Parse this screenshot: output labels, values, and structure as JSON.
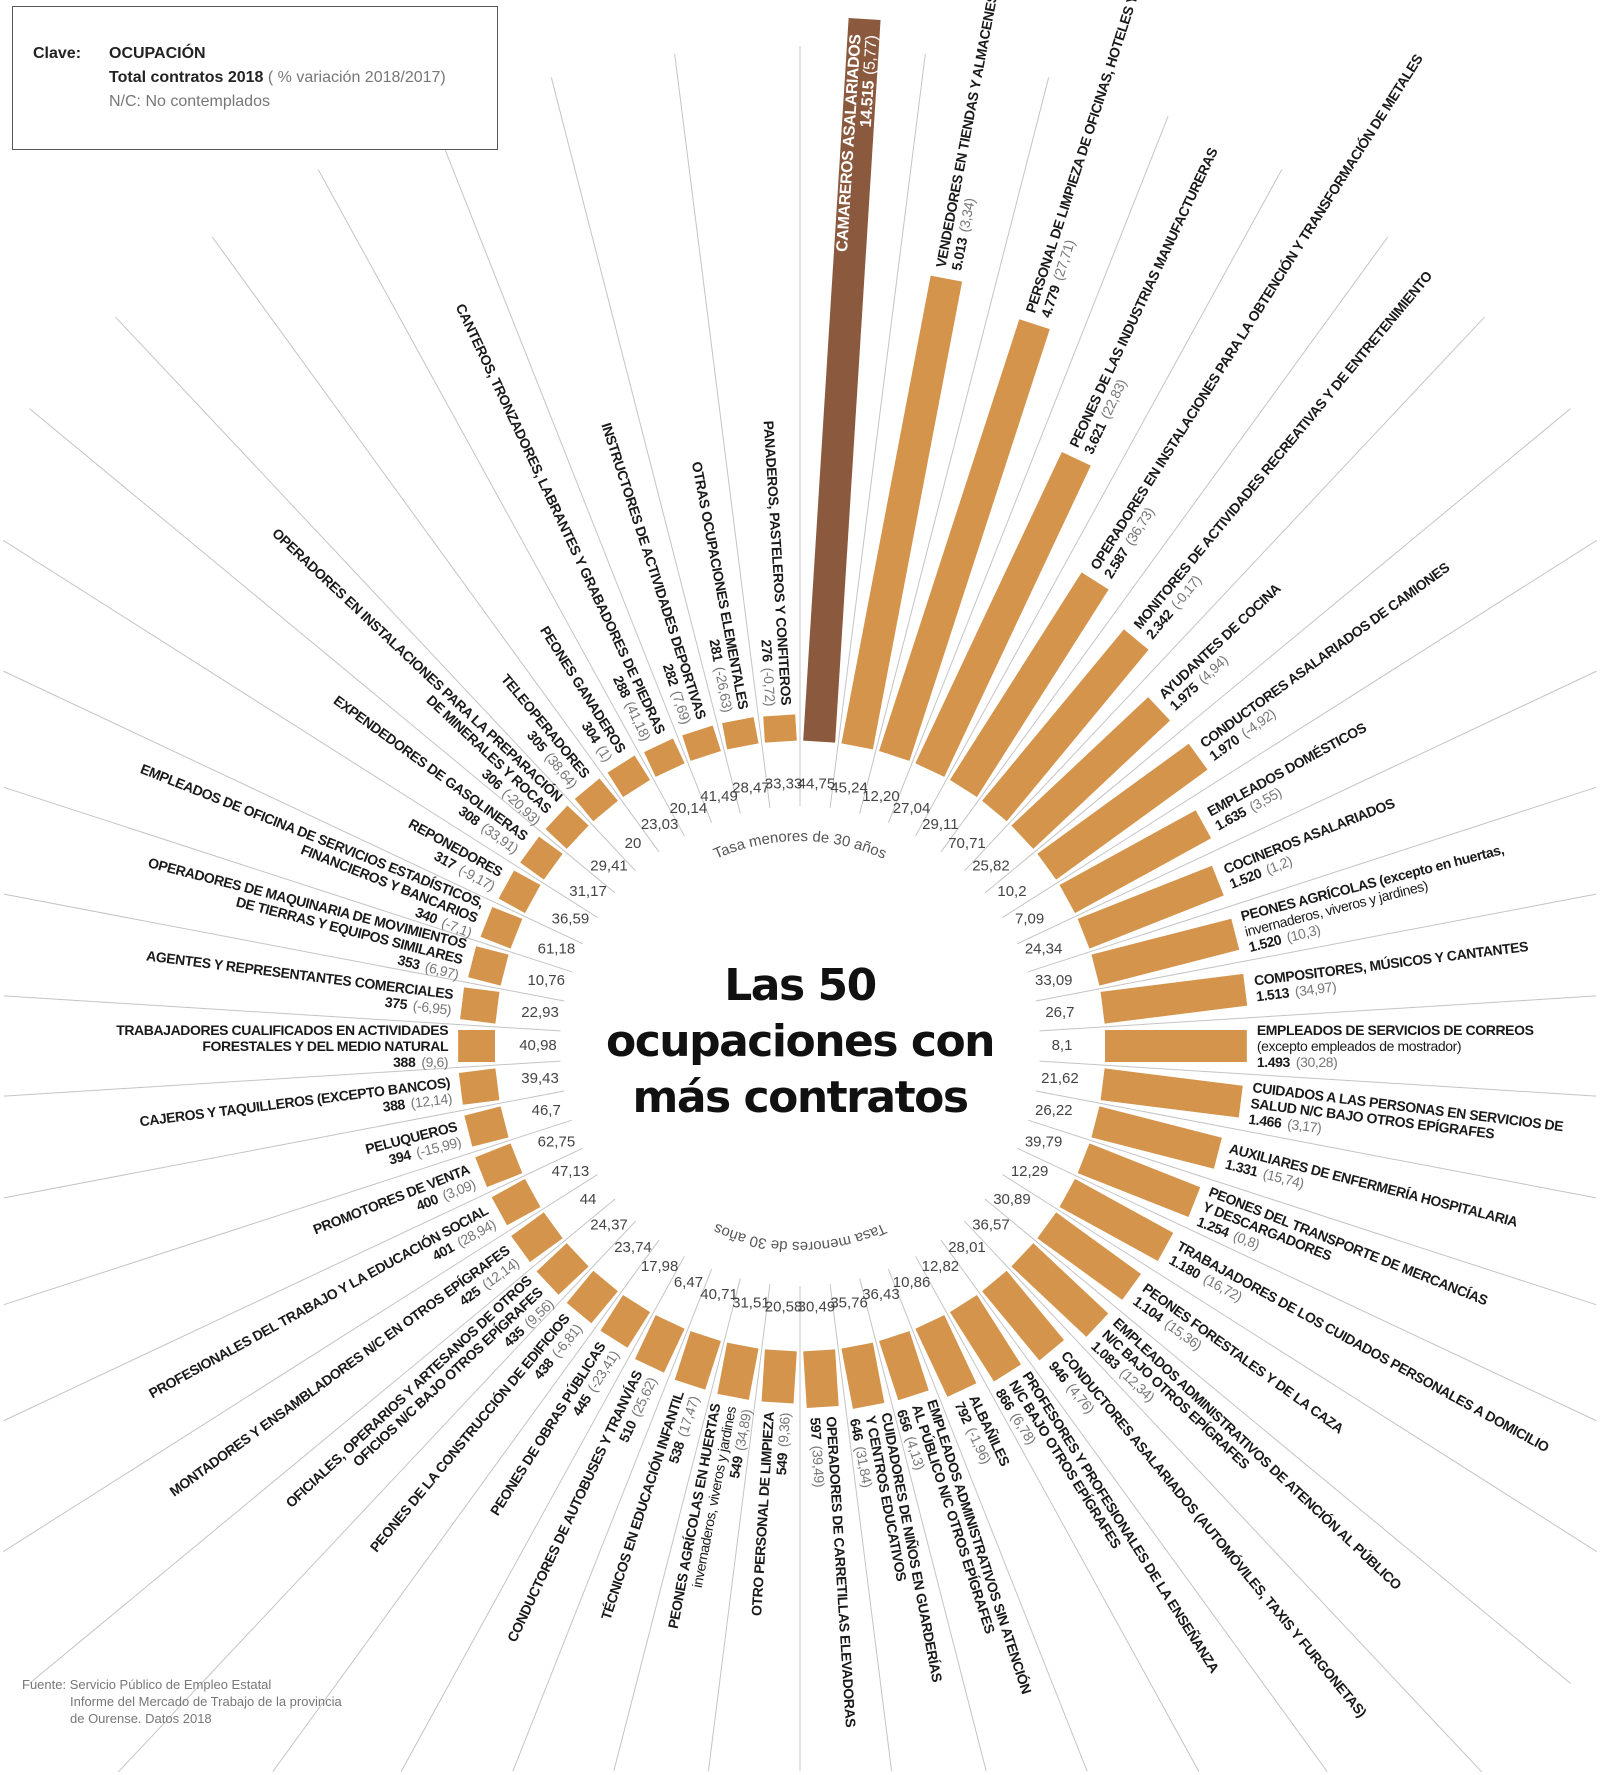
{
  "legend": {
    "key_label": "Clave:",
    "line1": "OCUPACIÓN",
    "line2_bold": "Total contratos 2018",
    "line2_rest": " ( % variación 2018/2017)",
    "line3": "N/C: No contemplados"
  },
  "title": {
    "line1": "Las 50",
    "line2": "ocupaciones con",
    "line3": "más contratos"
  },
  "tasa_label": "Tasa menores de 30 años",
  "source": {
    "line1": "Fuente: Servicio Público de Empleo Estatal",
    "line2": "Informe del Mercado de Trabajo de la provincia",
    "line3": "de Ourense. Datos 2018"
  },
  "colors": {
    "highlight_bar": "#8B5A3E",
    "bar": "#D4944C",
    "separator": "#C4C4C4"
  },
  "chart_data": {
    "type": "bar",
    "layout": "radial",
    "title": "Las 50 ocupaciones con más contratos",
    "value_label": "Total contratos 2018",
    "secondary_label": "% variación 2018/2017",
    "inner_label": "Tasa menores de 30 años",
    "items": [
      {
        "lines": [
          "CAMAREROS ASALARIADOS"
        ],
        "contratos": "14.515",
        "value": 14515,
        "variacion": "(5,77)",
        "tasa": "44,75"
      },
      {
        "lines": [
          "VENDEDORES EN TIENDAS Y ALMACENES"
        ],
        "contratos": "5.013",
        "value": 5013,
        "variacion": "(3,34)",
        "tasa": "45,24"
      },
      {
        "lines": [
          "PERSONAL DE LIMPIEZA DE OFICINAS, HOTELES Y OTROS"
        ],
        "contratos": "4.779",
        "value": 4779,
        "variacion": "(27,71)",
        "tasa": "12,20"
      },
      {
        "lines": [
          "PEONES DE LAS INDUSTRIAS MANUFACTURERAS"
        ],
        "contratos": "3.621",
        "value": 3621,
        "variacion": "(22,83)",
        "tasa": "27,04"
      },
      {
        "lines": [
          "OPERADORES EN INSTALACIONES PARA LA OBTENCIÓN Y TRANSFORMACIÓN DE METALES"
        ],
        "contratos": "2.587",
        "value": 2587,
        "variacion": "(36,73)",
        "tasa": "29,11"
      },
      {
        "lines": [
          "MONITORES DE ACTIVIDADES RECREATIVAS Y DE ENTRETENIMIENTO"
        ],
        "contratos": "2.342",
        "value": 2342,
        "variacion": "(-0,17)",
        "tasa": "70,71"
      },
      {
        "lines": [
          "AYUDANTES DE COCINA"
        ],
        "contratos": "1.975",
        "value": 1975,
        "variacion": "(4,94)",
        "tasa": "25,82"
      },
      {
        "lines": [
          "CONDUCTORES ASALARIADOS DE CAMIONES"
        ],
        "contratos": "1.970",
        "value": 1970,
        "variacion": "(-4,92)",
        "tasa": "10,2"
      },
      {
        "lines": [
          "EMPLEADOS DOMÉSTICOS"
        ],
        "contratos": "1.635",
        "value": 1635,
        "variacion": "(3,55)",
        "tasa": "7,09"
      },
      {
        "lines": [
          "COCINEROS ASALARIADOS"
        ],
        "contratos": "1.520",
        "value": 1520,
        "variacion": "(1,2)",
        "tasa": "24,34"
      },
      {
        "lines": [
          "PEONES AGRÍCOLAS (excepto en huertas,",
          "invernaderos, viveros y jardines)"
        ],
        "contratos": "1.520",
        "value": 1520,
        "variacion": "(10,3)",
        "tasa": "33,09"
      },
      {
        "lines": [
          "COMPOSITORES, MÚSICOS Y CANTANTES"
        ],
        "contratos": "1.513",
        "value": 1513,
        "variacion": "(34,97)",
        "tasa": "26,7"
      },
      {
        "lines": [
          "EMPLEADOS DE SERVICIOS DE CORREOS",
          "(excepto empleados de mostrador)"
        ],
        "contratos": "1.493",
        "value": 1493,
        "variacion": "(30,28)",
        "tasa": "8,1"
      },
      {
        "lines": [
          "CUIDADOS A LAS PERSONAS EN SERVICIOS DE",
          "SALUD N/C BAJO OTROS EPÍGRAFES"
        ],
        "contratos": "1.466",
        "value": 1466,
        "variacion": "(3,17)",
        "tasa": "21,62"
      },
      {
        "lines": [
          "AUXILIARES DE ENFERMERÍA HOSPITALARIA"
        ],
        "contratos": "1.331",
        "value": 1331,
        "variacion": "(15,74)",
        "tasa": "26,22"
      },
      {
        "lines": [
          "PEONES DEL TRANSPORTE DE MERCANCÍAS",
          "Y DESCARGADORES"
        ],
        "contratos": "1.254",
        "value": 1254,
        "variacion": "(0,8)",
        "tasa": "39,79"
      },
      {
        "lines": [
          "TRABAJADORES DE LOS CUIDADOS PERSONALES A DOMICILIO"
        ],
        "contratos": "1.180",
        "value": 1180,
        "variacion": "(16,72)",
        "tasa": "12,29"
      },
      {
        "lines": [
          "PEONES FORESTALES Y DE LA CAZA"
        ],
        "contratos": "1.104",
        "value": 1104,
        "variacion": "(15,36)",
        "tasa": "30,89"
      },
      {
        "lines": [
          "EMPLEADOS ADMINISTRATIVOS DE ATENCIÓN AL PÚBLICO",
          "N/C BAJO OTROS EPÍGRAFES"
        ],
        "contratos": "1.083",
        "value": 1083,
        "variacion": "(12,34)",
        "tasa": "36,57"
      },
      {
        "lines": [
          "CONDUCTORES ASALARIADOS (AUTOMÓVILES, TAXIS Y FURGONETAS)"
        ],
        "contratos": "946",
        "value": 946,
        "variacion": "(4,76)",
        "tasa": "28,01"
      },
      {
        "lines": [
          "PROFESORES Y PROFESIONALES DE LA ENSEÑANZA",
          "N/C BAJO OTROS EPÍGRAFES"
        ],
        "contratos": "866",
        "value": 866,
        "variacion": "(6,78)",
        "tasa": "12,82"
      },
      {
        "lines": [
          "ALBAÑILES"
        ],
        "contratos": "792",
        "value": 792,
        "variacion": "(-1,96)",
        "tasa": "10,86"
      },
      {
        "lines": [
          "EMPLEADOS ADMINISTRATIVOS SIN ATENCIÓN",
          "AL PÚBLICO N/C OTROS EPÍGRAFES"
        ],
        "contratos": "656",
        "value": 656,
        "variacion": "(4,13)",
        "tasa": "36,43"
      },
      {
        "lines": [
          "CUIDADORES DE NIÑOS EN GUARDERÍAS",
          "Y CENTROS EDUCATIVOS"
        ],
        "contratos": "646",
        "value": 646,
        "variacion": "(31,84)",
        "tasa": "35,76"
      },
      {
        "lines": [
          "OPERADORES DE CARRETILLAS ELEVADORAS"
        ],
        "contratos": "597",
        "value": 597,
        "variacion": "(39,49)",
        "tasa": "30,49"
      },
      {
        "lines": [
          "OTRO PERSONAL DE LIMPIEZA"
        ],
        "contratos": "549",
        "value": 549,
        "variacion": "(9,36)",
        "tasa": "20,58"
      },
      {
        "lines": [
          "PEONES AGRÍCOLAS EN HUERTAS",
          "invernaderos, viveros y jardines"
        ],
        "contratos": "549",
        "value": 549,
        "variacion": "(34,89)",
        "tasa": "31,51"
      },
      {
        "lines": [
          "TÉCNICOS EN EDUCACIÓN INFANTIL"
        ],
        "contratos": "538",
        "value": 538,
        "variacion": "(17,47)",
        "tasa": "40,71"
      },
      {
        "lines": [
          "CONDUCTORES DE AUTOBUSES Y TRANVÍAS"
        ],
        "contratos": "510",
        "value": 510,
        "variacion": "(25,62)",
        "tasa": "6,47"
      },
      {
        "lines": [
          "PEONES DE OBRAS PÚBLICAS"
        ],
        "contratos": "445",
        "value": 445,
        "variacion": "(-23,41)",
        "tasa": "17,98"
      },
      {
        "lines": [
          "PEONES DE LA CONSTRUCCIÓN DE EDIFICIOS"
        ],
        "contratos": "438",
        "value": 438,
        "variacion": "(-6,81)",
        "tasa": "23,74"
      },
      {
        "lines": [
          "OFICIALES, OPERARIOS Y ARTESANOS DE OTROS",
          "OFICIOS N/C BAJO OTROS EPÍGRAFES"
        ],
        "contratos": "435",
        "value": 435,
        "variacion": "(9,56)",
        "tasa": "24,37"
      },
      {
        "lines": [
          "MONTADORES Y ENSAMBLADORES N/C EN OTROS EPÍGRAFES"
        ],
        "contratos": "425",
        "value": 425,
        "variacion": "(12,14)",
        "tasa": "44"
      },
      {
        "lines": [
          "PROFESIONALES DEL TRABAJO Y LA EDUCACIÓN SOCIAL"
        ],
        "contratos": "401",
        "value": 401,
        "variacion": "(28,94)",
        "tasa": "47,13"
      },
      {
        "lines": [
          "PROMOTORES DE VENTA"
        ],
        "contratos": "400",
        "value": 400,
        "variacion": "(3,09)",
        "tasa": "62,75"
      },
      {
        "lines": [
          "PELUQUEROS"
        ],
        "contratos": "394",
        "value": 394,
        "variacion": "(-15,99)",
        "tasa": "46,7"
      },
      {
        "lines": [
          "CAJEROS Y TAQUILLEROS (EXCEPTO BANCOS)"
        ],
        "contratos": "388",
        "value": 388,
        "variacion": "(12,14)",
        "tasa": "39,43"
      },
      {
        "lines": [
          "TRABAJADORES CUALIFICADOS EN ACTIVIDADES",
          "FORESTALES Y DEL MEDIO NATURAL"
        ],
        "contratos": "388",
        "value": 388,
        "variacion": "(9,6)",
        "tasa": "40,98"
      },
      {
        "lines": [
          "AGENTES Y REPRESENTANTES COMERCIALES"
        ],
        "contratos": "375",
        "value": 375,
        "variacion": "(-6,95)",
        "tasa": "22,93"
      },
      {
        "lines": [
          "OPERADORES DE MAQUINARIA DE MOVIMIENTOS",
          "DE TIERRAS Y EQUIPOS SIMILARES"
        ],
        "contratos": "353",
        "value": 353,
        "variacion": "(6,97)",
        "tasa": "10,76"
      },
      {
        "lines": [
          "EMPLEADOS DE OFICINA DE SERVICIOS ESTADÍSTICOS,",
          "FINANCIEROS Y BANCARIOS"
        ],
        "contratos": "340",
        "value": 340,
        "variacion": "(-7,1)",
        "tasa": "61,18"
      },
      {
        "lines": [
          "REPONEDORES"
        ],
        "contratos": "317",
        "value": 317,
        "variacion": "(-9,17)",
        "tasa": "36,59"
      },
      {
        "lines": [
          "EXPENDEDORES DE GASOLINERAS"
        ],
        "contratos": "308",
        "value": 308,
        "variacion": "(33,91)",
        "tasa": "31,17"
      },
      {
        "lines": [
          "OPERADORES EN INSTALACIONES PARA LA PREPARACIÓN",
          "DE MINERALES Y ROCAS"
        ],
        "contratos": "306",
        "value": 306,
        "variacion": "(-20,93)",
        "tasa": "29,41"
      },
      {
        "lines": [
          "TELEOPERADORES"
        ],
        "contratos": "305",
        "value": 305,
        "variacion": "(38,64)",
        "tasa": "20"
      },
      {
        "lines": [
          "PEONES GANADEROS"
        ],
        "contratos": "304",
        "value": 304,
        "variacion": "(1)",
        "tasa": "23,03"
      },
      {
        "lines": [
          "CANTEROS, TRONZADORES, LABRANTES Y GRABADORES DE PIEDRAS"
        ],
        "contratos": "288",
        "value": 288,
        "variacion": "(41,18)",
        "tasa": "20,14"
      },
      {
        "lines": [
          "INSTRUCTORES DE ACTIVIDADES DEPORTIVAS"
        ],
        "contratos": "282",
        "value": 282,
        "variacion": "(7,69)",
        "tasa": "41,49"
      },
      {
        "lines": [
          "OTRAS OCUPACIONES ELEMENTALES"
        ],
        "contratos": "281",
        "value": 281,
        "variacion": "(-26,63)",
        "tasa": "28,47"
      },
      {
        "lines": [
          "PANADEROS, PASTELEROS Y CONFITEROS"
        ],
        "contratos": "276",
        "value": 276,
        "variacion": "(-0,72)",
        "tasa": "33,33"
      }
    ]
  }
}
